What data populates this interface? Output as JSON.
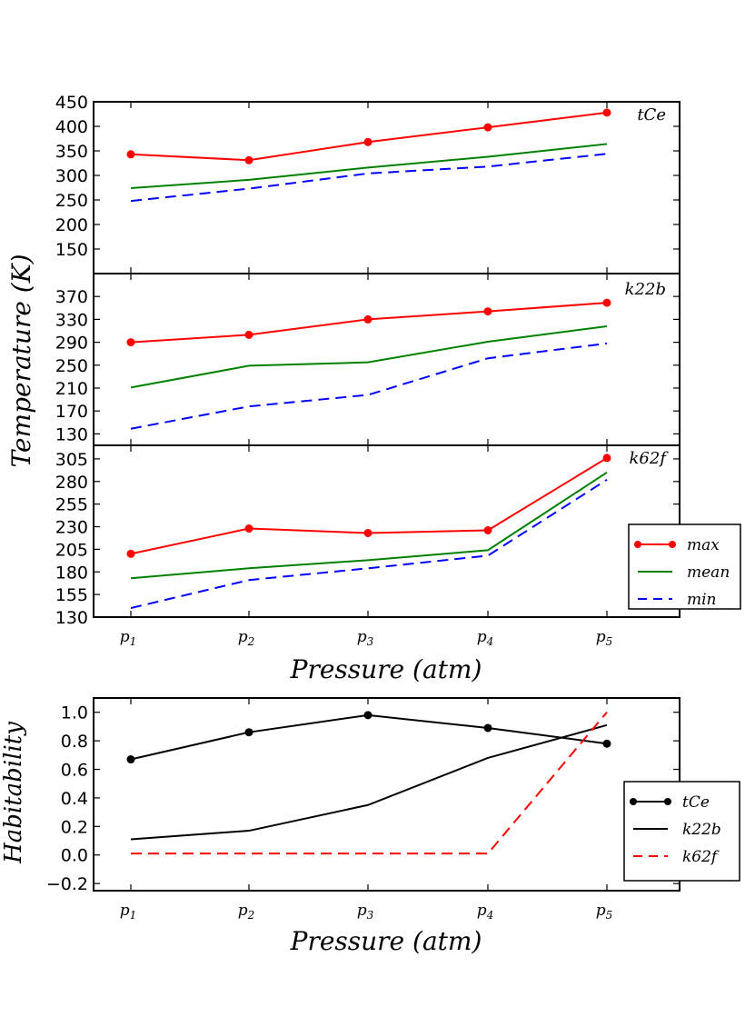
{
  "chart_data": [
    {
      "type": "line",
      "panel": "tCe",
      "label": "tCe",
      "categories": [
        "p1",
        "p2",
        "p3",
        "p4",
        "p5"
      ],
      "ylim": [
        100,
        450
      ],
      "yticks": [
        150,
        200,
        250,
        300,
        350,
        400,
        450
      ],
      "series": [
        {
          "name": "max",
          "values": [
            343,
            331,
            368,
            398,
            428
          ],
          "color": "#ff0000",
          "style": "solid",
          "marker": "o"
        },
        {
          "name": "mean",
          "values": [
            274,
            291,
            316,
            338,
            364
          ],
          "color": "#008000",
          "style": "solid",
          "marker": ""
        },
        {
          "name": "min",
          "values": [
            248,
            273,
            304,
            318,
            344
          ],
          "color": "#0000ff",
          "style": "dashed",
          "marker": ""
        }
      ]
    },
    {
      "type": "line",
      "panel": "k22b",
      "label": "k22b",
      "categories": [
        "p1",
        "p2",
        "p3",
        "p4",
        "p5"
      ],
      "ylim": [
        110,
        410
      ],
      "yticks": [
        130,
        170,
        210,
        250,
        290,
        330,
        370
      ],
      "series": [
        {
          "name": "max",
          "values": [
            290,
            303,
            330,
            344,
            359
          ],
          "color": "#ff0000",
          "style": "solid",
          "marker": "o"
        },
        {
          "name": "mean",
          "values": [
            211,
            249,
            255,
            291,
            318
          ],
          "color": "#008000",
          "style": "solid",
          "marker": ""
        },
        {
          "name": "min",
          "values": [
            139,
            178,
            198,
            262,
            288
          ],
          "color": "#0000ff",
          "style": "dashed",
          "marker": ""
        }
      ]
    },
    {
      "type": "line",
      "panel": "k62f",
      "label": "k62f",
      "categories": [
        "p1",
        "p2",
        "p3",
        "p4",
        "p5"
      ],
      "ylim": [
        130,
        320
      ],
      "yticks": [
        130,
        155,
        180,
        205,
        230,
        255,
        280,
        305
      ],
      "series": [
        {
          "name": "max",
          "values": [
            200,
            228,
            223,
            226,
            306
          ],
          "color": "#ff0000",
          "style": "solid",
          "marker": "o"
        },
        {
          "name": "mean",
          "values": [
            173,
            184,
            193,
            204,
            290
          ],
          "color": "#008000",
          "style": "solid",
          "marker": ""
        },
        {
          "name": "min",
          "values": [
            140,
            171,
            184,
            198,
            282
          ],
          "color": "#0000ff",
          "style": "dashed",
          "marker": ""
        }
      ]
    },
    {
      "type": "line",
      "panel": "habitability",
      "categories": [
        "p1",
        "p2",
        "p3",
        "p4",
        "p5"
      ],
      "ylim": [
        -0.25,
        1.1
      ],
      "yticks": [
        -0.2,
        0.0,
        0.2,
        0.4,
        0.6,
        0.8,
        1.0
      ],
      "ylabel": "Habitability",
      "xlabel": "Pressure (atm)",
      "series": [
        {
          "name": "tCe",
          "values": [
            0.67,
            0.86,
            0.98,
            0.89,
            0.78
          ],
          "color": "#000000",
          "style": "solid",
          "marker": "o"
        },
        {
          "name": "k22b",
          "values": [
            0.11,
            0.17,
            0.35,
            0.68,
            0.91
          ],
          "color": "#000000",
          "style": "solid",
          "marker": ""
        },
        {
          "name": "k62f",
          "values": [
            0.01,
            0.01,
            0.01,
            0.01,
            1.0
          ],
          "color": "#ff0000",
          "style": "dashed",
          "marker": ""
        }
      ]
    }
  ],
  "labels": {
    "temp_ylabel": "Temperature (K)",
    "temp_xlabel": "Pressure (atm)",
    "hab_ylabel": "Habitability",
    "hab_xlabel": "Pressure (atm)"
  },
  "legend_temp": [
    "max",
    "mean",
    "min"
  ],
  "legend_hab": [
    "tCe",
    "k22b",
    "k62f"
  ],
  "xtick_subscripts": [
    "1",
    "2",
    "3",
    "4",
    "5"
  ],
  "xtick_base": "p"
}
